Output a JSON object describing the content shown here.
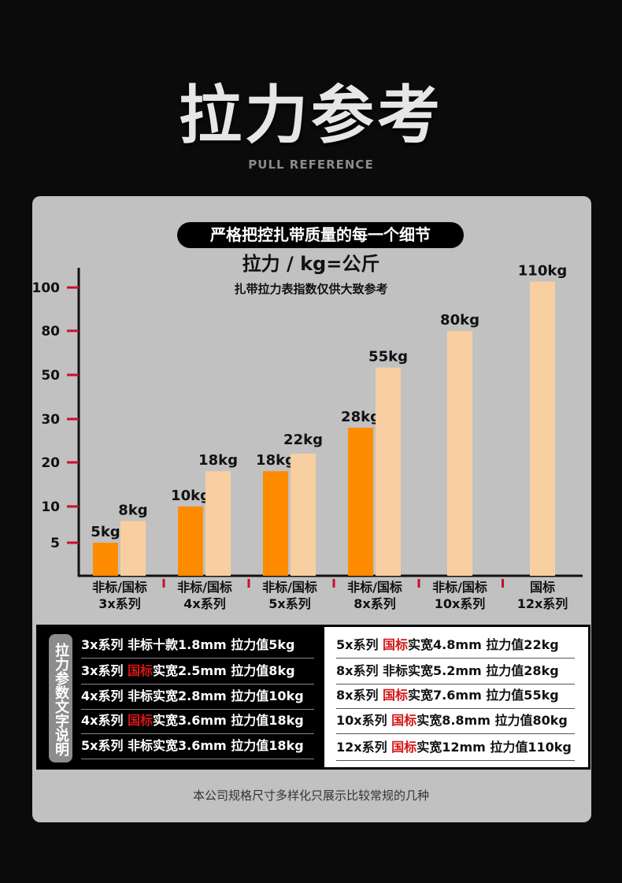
{
  "header": {
    "title": "拉力参考",
    "subtitle": "PULL REFERENCE"
  },
  "panel": {
    "slogan": "严格把控扎带质量的每一个细节",
    "unit": "拉力 / kg=公斤",
    "note": "扎带拉力表指数仅供大致参考",
    "footer": "本公司规格尺寸多样化只展示比较常规的几种"
  },
  "chart_data": {
    "type": "bar",
    "title": "拉力 / kg=公斤",
    "subtitle": "扎带拉力表指数仅供大致参考",
    "yticks": [
      5,
      10,
      20,
      30,
      50,
      80,
      100
    ],
    "categories": [
      {
        "line1": "非标/国标",
        "line2": "3x系列"
      },
      {
        "line1": "非标/国标",
        "line2": "4x系列"
      },
      {
        "line1": "非标/国标",
        "line2": "5x系列"
      },
      {
        "line1": "非标/国标",
        "line2": "8x系列"
      },
      {
        "line1": "非标/国标",
        "line2": "10x系列"
      },
      {
        "line1": "国标",
        "line2": "12x系列"
      }
    ],
    "series": [
      {
        "name": "非标",
        "color": "#ff8c00",
        "values": [
          5,
          10,
          18,
          28,
          null,
          null
        ],
        "labels": [
          "5kg",
          "10kg",
          "18kg",
          "28kg",
          null,
          null
        ]
      },
      {
        "name": "国标",
        "color": "#f8cfa0",
        "values": [
          8,
          18,
          22,
          55,
          80,
          110
        ],
        "labels": [
          "8kg",
          "18kg",
          "22kg",
          "55kg",
          "80kg",
          "110kg"
        ]
      }
    ],
    "axis_color": "#111111",
    "tick_color": "#c8102e"
  },
  "table": {
    "side_label": "拉力参数文字说明",
    "left": [
      {
        "pre": "3x系列 非标十款1.8mm 拉力值5kg",
        "red": "",
        "post": ""
      },
      {
        "pre": "3x系列 ",
        "red": "国标",
        "post": "实宽2.5mm 拉力值8kg"
      },
      {
        "pre": "4x系列 非标实宽2.8mm 拉力值10kg",
        "red": "",
        "post": ""
      },
      {
        "pre": "4x系列 ",
        "red": "国标",
        "post": "实宽3.6mm 拉力值18kg"
      },
      {
        "pre": "5x系列 非标实宽3.6mm 拉力值18kg",
        "red": "",
        "post": ""
      }
    ],
    "right": [
      {
        "pre": "5x系列 ",
        "red": "国标",
        "post": "实宽4.8mm 拉力值22kg"
      },
      {
        "pre": "8x系列 非标实宽5.2mm 拉力值28kg",
        "red": "",
        "post": ""
      },
      {
        "pre": "8x系列 ",
        "red": "国标",
        "post": "实宽7.6mm 拉力值55kg"
      },
      {
        "pre": "10x系列 ",
        "red": "国标",
        "post": "实宽8.8mm 拉力值80kg"
      },
      {
        "pre": "12x系列 ",
        "red": "国标",
        "post": "实宽12mm 拉力值110kg"
      }
    ]
  }
}
